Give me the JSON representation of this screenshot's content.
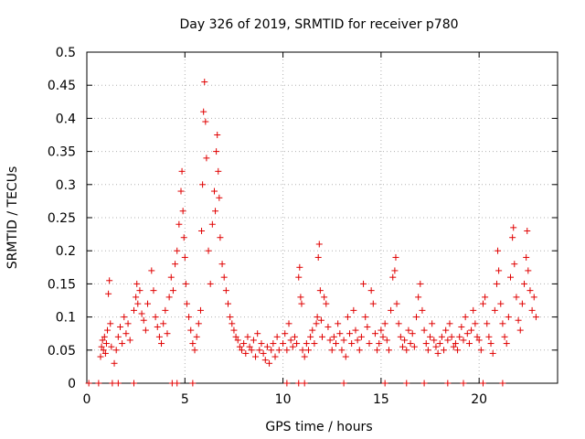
{
  "chart_data": {
    "type": "scatter",
    "title": "Day 326 of 2019, SRMTID for receiver p780",
    "xlabel": "GPS time / hours",
    "ylabel": "SRMTID / TECUs",
    "xlim": [
      0,
      24
    ],
    "ylim": [
      0,
      0.5
    ],
    "x_ticks": [
      0,
      5,
      10,
      15,
      20
    ],
    "x_tick_labels": [
      "0",
      "5",
      "10",
      "15",
      "20"
    ],
    "y_ticks": [
      0,
      0.05,
      0.1,
      0.15,
      0.2,
      0.25,
      0.3,
      0.35,
      0.4,
      0.45,
      0.5
    ],
    "y_tick_labels": [
      "0",
      "0.05",
      "0.1",
      "0.15",
      "0.2",
      "0.25",
      "0.3",
      "0.35",
      "0.4",
      "0.45",
      "0.5"
    ],
    "grid": true,
    "marker": "+",
    "series": [
      {
        "name": "SRMTID",
        "color": "#e00000",
        "points": [
          [
            0.7,
            0.04
          ],
          [
            0.75,
            0.055
          ],
          [
            0.8,
            0.065
          ],
          [
            0.85,
            0.05
          ],
          [
            0.9,
            0.07
          ],
          [
            0.95,
            0.045
          ],
          [
            1.0,
            0.06
          ],
          [
            1.05,
            0.08
          ],
          [
            1.1,
            0.135
          ],
          [
            1.15,
            0.155
          ],
          [
            1.2,
            0.09
          ],
          [
            1.25,
            0.055
          ],
          [
            1.4,
            0.03
          ],
          [
            1.5,
            0.05
          ],
          [
            1.6,
            0.07
          ],
          [
            1.7,
            0.085
          ],
          [
            1.8,
            0.06
          ],
          [
            1.9,
            0.1
          ],
          [
            2.0,
            0.075
          ],
          [
            2.1,
            0.09
          ],
          [
            2.2,
            0.065
          ],
          [
            2.4,
            0.11
          ],
          [
            2.5,
            0.13
          ],
          [
            2.55,
            0.15
          ],
          [
            2.6,
            0.12
          ],
          [
            2.7,
            0.14
          ],
          [
            2.8,
            0.105
          ],
          [
            2.9,
            0.095
          ],
          [
            3.0,
            0.08
          ],
          [
            3.1,
            0.12
          ],
          [
            3.3,
            0.17
          ],
          [
            3.4,
            0.14
          ],
          [
            3.5,
            0.1
          ],
          [
            3.6,
            0.085
          ],
          [
            3.7,
            0.07
          ],
          [
            3.8,
            0.06
          ],
          [
            3.9,
            0.09
          ],
          [
            4.0,
            0.11
          ],
          [
            4.1,
            0.075
          ],
          [
            4.2,
            0.13
          ],
          [
            4.3,
            0.16
          ],
          [
            4.4,
            0.14
          ],
          [
            4.5,
            0.18
          ],
          [
            4.6,
            0.2
          ],
          [
            4.7,
            0.24
          ],
          [
            4.8,
            0.29
          ],
          [
            4.85,
            0.32
          ],
          [
            4.9,
            0.26
          ],
          [
            4.95,
            0.22
          ],
          [
            5.0,
            0.19
          ],
          [
            5.05,
            0.15
          ],
          [
            5.1,
            0.12
          ],
          [
            5.2,
            0.1
          ],
          [
            5.3,
            0.08
          ],
          [
            5.4,
            0.06
          ],
          [
            5.5,
            0.05
          ],
          [
            5.6,
            0.07
          ],
          [
            5.7,
            0.09
          ],
          [
            5.8,
            0.11
          ],
          [
            5.85,
            0.23
          ],
          [
            5.9,
            0.3
          ],
          [
            5.95,
            0.41
          ],
          [
            6.0,
            0.455
          ],
          [
            6.05,
            0.395
          ],
          [
            6.1,
            0.34
          ],
          [
            6.2,
            0.2
          ],
          [
            6.3,
            0.15
          ],
          [
            6.4,
            0.24
          ],
          [
            6.5,
            0.29
          ],
          [
            6.55,
            0.26
          ],
          [
            6.6,
            0.35
          ],
          [
            6.65,
            0.375
          ],
          [
            6.7,
            0.32
          ],
          [
            6.75,
            0.28
          ],
          [
            6.8,
            0.22
          ],
          [
            6.9,
            0.18
          ],
          [
            7.0,
            0.16
          ],
          [
            7.1,
            0.14
          ],
          [
            7.2,
            0.12
          ],
          [
            7.3,
            0.1
          ],
          [
            7.4,
            0.09
          ],
          [
            7.5,
            0.08
          ],
          [
            7.6,
            0.07
          ],
          [
            7.7,
            0.065
          ],
          [
            7.8,
            0.055
          ],
          [
            7.9,
            0.05
          ],
          [
            8.0,
            0.06
          ],
          [
            8.1,
            0.045
          ],
          [
            8.2,
            0.07
          ],
          [
            8.3,
            0.055
          ],
          [
            8.4,
            0.05
          ],
          [
            8.5,
            0.065
          ],
          [
            8.6,
            0.04
          ],
          [
            8.7,
            0.075
          ],
          [
            8.8,
            0.05
          ],
          [
            8.9,
            0.06
          ],
          [
            9.0,
            0.045
          ],
          [
            9.1,
            0.035
          ],
          [
            9.2,
            0.055
          ],
          [
            9.3,
            0.03
          ],
          [
            9.4,
            0.05
          ],
          [
            9.5,
            0.06
          ],
          [
            9.6,
            0.04
          ],
          [
            9.7,
            0.07
          ],
          [
            9.8,
            0.05
          ],
          [
            10.0,
            0.06
          ],
          [
            10.1,
            0.075
          ],
          [
            10.2,
            0.05
          ],
          [
            10.3,
            0.09
          ],
          [
            10.4,
            0.065
          ],
          [
            10.5,
            0.055
          ],
          [
            10.6,
            0.07
          ],
          [
            10.7,
            0.06
          ],
          [
            10.8,
            0.16
          ],
          [
            10.85,
            0.175
          ],
          [
            10.9,
            0.13
          ],
          [
            10.95,
            0.12
          ],
          [
            11.0,
            0.05
          ],
          [
            11.1,
            0.04
          ],
          [
            11.2,
            0.06
          ],
          [
            11.3,
            0.05
          ],
          [
            11.4,
            0.07
          ],
          [
            11.5,
            0.08
          ],
          [
            11.6,
            0.06
          ],
          [
            11.7,
            0.09
          ],
          [
            11.75,
            0.1
          ],
          [
            11.8,
            0.19
          ],
          [
            11.85,
            0.21
          ],
          [
            11.9,
            0.14
          ],
          [
            11.95,
            0.095
          ],
          [
            12.0,
            0.07
          ],
          [
            12.1,
            0.13
          ],
          [
            12.2,
            0.12
          ],
          [
            12.3,
            0.085
          ],
          [
            12.4,
            0.065
          ],
          [
            12.5,
            0.05
          ],
          [
            12.6,
            0.07
          ],
          [
            12.7,
            0.06
          ],
          [
            12.8,
            0.09
          ],
          [
            12.9,
            0.075
          ],
          [
            13.0,
            0.05
          ],
          [
            13.1,
            0.065
          ],
          [
            13.2,
            0.04
          ],
          [
            13.3,
            0.1
          ],
          [
            13.4,
            0.075
          ],
          [
            13.5,
            0.06
          ],
          [
            13.6,
            0.11
          ],
          [
            13.7,
            0.08
          ],
          [
            13.8,
            0.065
          ],
          [
            13.9,
            0.05
          ],
          [
            14.0,
            0.07
          ],
          [
            14.1,
            0.15
          ],
          [
            14.2,
            0.1
          ],
          [
            14.3,
            0.085
          ],
          [
            14.4,
            0.06
          ],
          [
            14.5,
            0.14
          ],
          [
            14.6,
            0.12
          ],
          [
            14.7,
            0.075
          ],
          [
            14.8,
            0.05
          ],
          [
            14.9,
            0.06
          ],
          [
            15.0,
            0.08
          ],
          [
            15.1,
            0.07
          ],
          [
            15.2,
            0.09
          ],
          [
            15.3,
            0.065
          ],
          [
            15.4,
            0.05
          ],
          [
            15.5,
            0.11
          ],
          [
            15.6,
            0.16
          ],
          [
            15.7,
            0.17
          ],
          [
            15.75,
            0.19
          ],
          [
            15.8,
            0.12
          ],
          [
            15.9,
            0.09
          ],
          [
            16.0,
            0.07
          ],
          [
            16.1,
            0.055
          ],
          [
            16.2,
            0.065
          ],
          [
            16.3,
            0.05
          ],
          [
            16.4,
            0.08
          ],
          [
            16.5,
            0.06
          ],
          [
            16.6,
            0.075
          ],
          [
            16.7,
            0.055
          ],
          [
            16.8,
            0.1
          ],
          [
            16.9,
            0.13
          ],
          [
            17.0,
            0.15
          ],
          [
            17.1,
            0.11
          ],
          [
            17.2,
            0.08
          ],
          [
            17.3,
            0.06
          ],
          [
            17.4,
            0.05
          ],
          [
            17.5,
            0.07
          ],
          [
            17.6,
            0.09
          ],
          [
            17.7,
            0.065
          ],
          [
            17.8,
            0.055
          ],
          [
            17.9,
            0.045
          ],
          [
            18.0,
            0.06
          ],
          [
            18.1,
            0.07
          ],
          [
            18.2,
            0.05
          ],
          [
            18.3,
            0.08
          ],
          [
            18.4,
            0.065
          ],
          [
            18.5,
            0.09
          ],
          [
            18.6,
            0.07
          ],
          [
            18.7,
            0.055
          ],
          [
            18.8,
            0.06
          ],
          [
            18.9,
            0.05
          ],
          [
            19.0,
            0.07
          ],
          [
            19.1,
            0.085
          ],
          [
            19.2,
            0.065
          ],
          [
            19.3,
            0.1
          ],
          [
            19.4,
            0.075
          ],
          [
            19.5,
            0.06
          ],
          [
            19.6,
            0.08
          ],
          [
            19.7,
            0.11
          ],
          [
            19.8,
            0.09
          ],
          [
            19.9,
            0.07
          ],
          [
            20.0,
            0.065
          ],
          [
            20.1,
            0.05
          ],
          [
            20.2,
            0.12
          ],
          [
            20.3,
            0.13
          ],
          [
            20.4,
            0.09
          ],
          [
            20.5,
            0.07
          ],
          [
            20.6,
            0.06
          ],
          [
            20.7,
            0.045
          ],
          [
            20.8,
            0.11
          ],
          [
            20.9,
            0.15
          ],
          [
            20.95,
            0.2
          ],
          [
            21.0,
            0.17
          ],
          [
            21.1,
            0.12
          ],
          [
            21.2,
            0.09
          ],
          [
            21.3,
            0.07
          ],
          [
            21.4,
            0.06
          ],
          [
            21.5,
            0.1
          ],
          [
            21.6,
            0.16
          ],
          [
            21.7,
            0.22
          ],
          [
            21.75,
            0.235
          ],
          [
            21.8,
            0.18
          ],
          [
            21.9,
            0.13
          ],
          [
            22.0,
            0.095
          ],
          [
            22.1,
            0.08
          ],
          [
            22.2,
            0.12
          ],
          [
            22.3,
            0.15
          ],
          [
            22.4,
            0.19
          ],
          [
            22.45,
            0.23
          ],
          [
            22.5,
            0.17
          ],
          [
            22.6,
            0.14
          ],
          [
            22.7,
            0.11
          ],
          [
            22.8,
            0.13
          ],
          [
            22.9,
            0.1
          ]
        ]
      }
    ],
    "zero_points_x": [
      0.1,
      0.6,
      1.3,
      1.6,
      2.4,
      4.35,
      4.6,
      5.4,
      10.2,
      10.8,
      11.1,
      13.1,
      15.2,
      16.3,
      17.2,
      18.4,
      19.2,
      20.2,
      21.2
    ]
  }
}
